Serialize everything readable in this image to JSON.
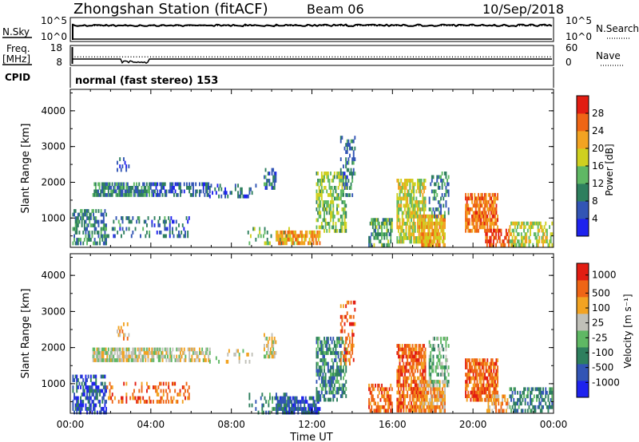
{
  "header": {
    "station": "Zhongshan Station (fitACF)",
    "beam": "Beam 06",
    "date": "10/Sep/2018"
  },
  "panel_nsky": {
    "left_label": "N.Sky",
    "right_label": "N.Search",
    "ticks_left": [
      "10^5",
      "10^0"
    ],
    "ticks_right": [
      "10^5",
      "10^0"
    ],
    "nsky_level": 3.5,
    "nsearch_level": 3.4
  },
  "panel_freq": {
    "left_label": "Freq.",
    "left_unit": "[MHz]",
    "right_label": "Nave",
    "ticks_left": [
      "18",
      "8"
    ],
    "ticks_right": [
      "60",
      "0"
    ],
    "freq_level": 11,
    "nave_level": 26,
    "dip_window": [
      2.5,
      3.9
    ]
  },
  "cpid": {
    "label": "CPID",
    "text": "normal (fast stereo) 153"
  },
  "chart_data": [
    {
      "type": "heatmap",
      "name": "power",
      "xlabel": "",
      "ylabel": "Slant Range [km]",
      "xlim": [
        0,
        24
      ],
      "ylim": [
        180,
        4600
      ],
      "yticks": [
        1000,
        2000,
        3000,
        4000
      ],
      "colorbar": {
        "label": "Power [dB]",
        "range": [
          0,
          32
        ],
        "ticks": [
          4,
          8,
          12,
          16,
          20,
          24,
          28
        ],
        "colors": [
          "#1e22ee",
          "#3255b5",
          "#2e7f5e",
          "#5fb864",
          "#cfd020",
          "#f2a322",
          "#ef6515",
          "#e21d12"
        ]
      },
      "patches": [
        {
          "t": [
            0.1,
            1.8
          ],
          "r": [
            250,
            1250
          ],
          "v": 10,
          "d": 0.55
        },
        {
          "t": [
            1.8,
            5.9
          ],
          "r": [
            500,
            1050
          ],
          "v": 8,
          "d": 0.25
        },
        {
          "t": [
            1.1,
            4.1
          ],
          "r": [
            1650,
            2000
          ],
          "v": 10,
          "d": 0.75
        },
        {
          "t": [
            4.1,
            6.9
          ],
          "r": [
            1680,
            2000
          ],
          "v": 7,
          "d": 0.55
        },
        {
          "t": [
            6.9,
            9.2
          ],
          "r": [
            1600,
            1960
          ],
          "v": 7,
          "d": 0.2
        },
        {
          "t": [
            9.6,
            10.2
          ],
          "r": [
            1800,
            2400
          ],
          "v": 8,
          "d": 0.5
        },
        {
          "t": [
            2.3,
            2.9
          ],
          "r": [
            2250,
            2700
          ],
          "v": 6,
          "d": 0.3
        },
        {
          "t": [
            8.8,
            11.2
          ],
          "r": [
            250,
            750
          ],
          "v": 14,
          "d": 0.2
        },
        {
          "t": [
            10.2,
            12.4
          ],
          "r": [
            250,
            650
          ],
          "v": 22,
          "d": 0.75
        },
        {
          "t": [
            12.2,
            13.7
          ],
          "r": [
            600,
            2300
          ],
          "v": 15,
          "d": 0.55
        },
        {
          "t": [
            13.4,
            14.1
          ],
          "r": [
            1600,
            3300
          ],
          "v": 8,
          "d": 0.3
        },
        {
          "t": [
            14.8,
            16.0
          ],
          "r": [
            250,
            1000
          ],
          "v": 12,
          "d": 0.6
        },
        {
          "t": [
            16.2,
            17.6
          ],
          "r": [
            300,
            2100
          ],
          "v": 18,
          "d": 0.7
        },
        {
          "t": [
            17.3,
            18.6
          ],
          "r": [
            250,
            1100
          ],
          "v": 21,
          "d": 0.8
        },
        {
          "t": [
            17.8,
            18.8
          ],
          "r": [
            1000,
            2300
          ],
          "v": 10,
          "d": 0.4
        },
        {
          "t": [
            19.6,
            21.2
          ],
          "r": [
            600,
            1700
          ],
          "v": 25,
          "d": 0.75
        },
        {
          "t": [
            20.6,
            21.8
          ],
          "r": [
            250,
            700
          ],
          "v": 28,
          "d": 0.55
        },
        {
          "t": [
            21.8,
            23.9
          ],
          "r": [
            250,
            900
          ],
          "v": 17,
          "d": 0.5
        }
      ]
    },
    {
      "type": "heatmap",
      "name": "velocity",
      "xlabel": "Time UT",
      "ylabel": "Slant Range [km]",
      "xlim": [
        0,
        24
      ],
      "ylim": [
        180,
        4600
      ],
      "xticks": [
        "00:00",
        "04:00",
        "08:00",
        "12:00",
        "16:00",
        "20:00",
        "00:00"
      ],
      "yticks": [
        1000,
        2000,
        3000,
        4000
      ],
      "colorbar": {
        "label": "Velocity [m s⁻¹]",
        "ticks": [
          "1000",
          "500",
          "100",
          "25",
          "-25",
          "-100",
          "-500",
          "-1000"
        ],
        "colors": [
          "#1e22ee",
          "#3255b5",
          "#2e7f5e",
          "#5fb864",
          "#c0c0b8",
          "#f2a322",
          "#ef6515",
          "#e21d12"
        ]
      },
      "patches": [
        {
          "t": [
            0.1,
            1.8
          ],
          "r": [
            250,
            1250
          ],
          "v": 1,
          "d": 0.55
        },
        {
          "t": [
            1.8,
            5.9
          ],
          "r": [
            500,
            1050
          ],
          "v": 6,
          "d": 0.25
        },
        {
          "t": [
            1.1,
            4.1
          ],
          "r": [
            1650,
            2000
          ],
          "v": 4,
          "d": 0.75
        },
        {
          "t": [
            4.1,
            6.9
          ],
          "r": [
            1680,
            2000
          ],
          "v": 4,
          "d": 0.55
        },
        {
          "t": [
            6.9,
            9.2
          ],
          "r": [
            1600,
            1960
          ],
          "v": 4,
          "d": 0.2
        },
        {
          "t": [
            9.6,
            10.2
          ],
          "r": [
            1800,
            2400
          ],
          "v": 4,
          "d": 0.5
        },
        {
          "t": [
            2.3,
            2.9
          ],
          "r": [
            2250,
            2700
          ],
          "v": 5,
          "d": 0.3
        },
        {
          "t": [
            8.8,
            11.2
          ],
          "r": [
            250,
            750
          ],
          "v": 2,
          "d": 0.2
        },
        {
          "t": [
            10.2,
            12.4
          ],
          "r": [
            250,
            650
          ],
          "v": 1,
          "d": 0.75
        },
        {
          "t": [
            12.2,
            13.7
          ],
          "r": [
            600,
            2300
          ],
          "v": 2,
          "d": 0.55
        },
        {
          "t": [
            13.4,
            14.1
          ],
          "r": [
            1600,
            3300
          ],
          "v": 6,
          "d": 0.3
        },
        {
          "t": [
            14.8,
            16.0
          ],
          "r": [
            250,
            1000
          ],
          "v": 6,
          "d": 0.6
        },
        {
          "t": [
            16.2,
            17.6
          ],
          "r": [
            300,
            2100
          ],
          "v": 6,
          "d": 0.7
        },
        {
          "t": [
            17.3,
            18.6
          ],
          "r": [
            250,
            1100
          ],
          "v": 5,
          "d": 0.8
        },
        {
          "t": [
            17.8,
            18.8
          ],
          "r": [
            1000,
            2300
          ],
          "v": 3,
          "d": 0.4
        },
        {
          "t": [
            19.6,
            21.2
          ],
          "r": [
            600,
            1700
          ],
          "v": 6,
          "d": 0.75
        },
        {
          "t": [
            20.6,
            21.8
          ],
          "r": [
            250,
            700
          ],
          "v": 5,
          "d": 0.55
        },
        {
          "t": [
            21.8,
            23.9
          ],
          "r": [
            250,
            900
          ],
          "v": 2,
          "d": 0.5
        }
      ]
    }
  ]
}
